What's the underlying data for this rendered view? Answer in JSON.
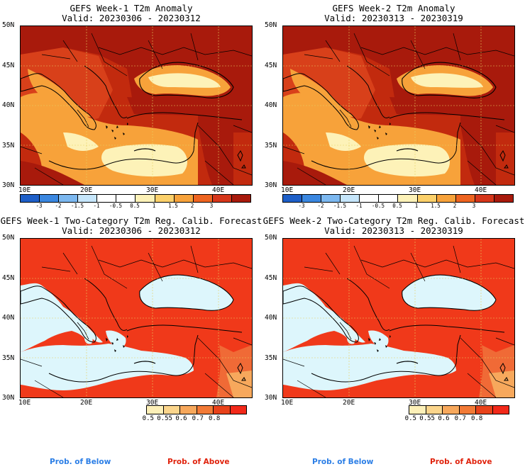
{
  "panels": [
    {
      "id": "w1-anom",
      "title_line1": "GEFS Week-1 T2m Anomaly",
      "title_line2": "Valid: 20230306 - 20230312",
      "kind": "anomaly",
      "lon_ticks": [
        "10E",
        "20E",
        "30E",
        "40E"
      ],
      "lat_ticks": [
        "50N",
        "45N",
        "40N",
        "35N",
        "30N"
      ]
    },
    {
      "id": "w2-anom",
      "title_line1": "GEFS Week-2 T2m Anomaly",
      "title_line2": "Valid: 20230313 - 20230319",
      "kind": "anomaly",
      "lon_ticks": [
        "10E",
        "20E",
        "30E",
        "40E"
      ],
      "lat_ticks": [
        "50N",
        "45N",
        "40N",
        "35N",
        "30N"
      ]
    },
    {
      "id": "w1-prob",
      "title_line1": "GEFS Week-1 Two-Category T2m Reg. Calib. Forecast",
      "title_line2": "Valid: 20230306 - 20230312",
      "kind": "probability",
      "lon_ticks": [
        "10E",
        "20E",
        "30E",
        "40E"
      ],
      "lat_ticks": [
        "50N",
        "45N",
        "40N",
        "35N",
        "30N"
      ]
    },
    {
      "id": "w2-prob",
      "title_line1": "GEFS Week-2 Two-Category T2m Reg. Calib. Forecast",
      "title_line2": "Valid: 20230313 - 20230319",
      "kind": "probability",
      "lon_ticks": [
        "10E",
        "20E",
        "30E",
        "40E"
      ],
      "lat_ticks": [
        "50N",
        "45N",
        "40N",
        "35N",
        "30N"
      ]
    }
  ],
  "anomaly_colorbar": {
    "colors": [
      "#1e5fc8",
      "#3a87e0",
      "#7cb8f0",
      "#c6e6fb",
      "#ffffff",
      "#ffffff",
      "#fdf2b8",
      "#fbd06a",
      "#f7a23a",
      "#ee6420",
      "#d6361a",
      "#a81a0c"
    ],
    "labels": [
      "-3",
      "-2",
      "-1.5",
      "-1",
      "-0.5",
      "0.5",
      "1",
      "1.5",
      "2",
      "3"
    ]
  },
  "prob_colorbar": {
    "colors": [
      "#fdf0b8",
      "#fbd58c",
      "#f7a85c",
      "#f27a36",
      "#e8421a",
      "#f2291a"
    ],
    "labels": [
      "0.5",
      "0.55",
      "0.6",
      "0.7",
      "0.8"
    ]
  },
  "legend": {
    "below": "Prob. of Below",
    "above": "Prob. of Above"
  },
  "colors": {
    "land_warm": "#c22a0e",
    "dark_red": "#a81a0c",
    "anomaly_orange": "#f7a23a",
    "anomaly_light": "#fdf2b8",
    "prob_land": "#f0391a",
    "prob_sea": "#ddf6fc",
    "below_text": "#2b7ee6",
    "above_text": "#e0220c"
  }
}
